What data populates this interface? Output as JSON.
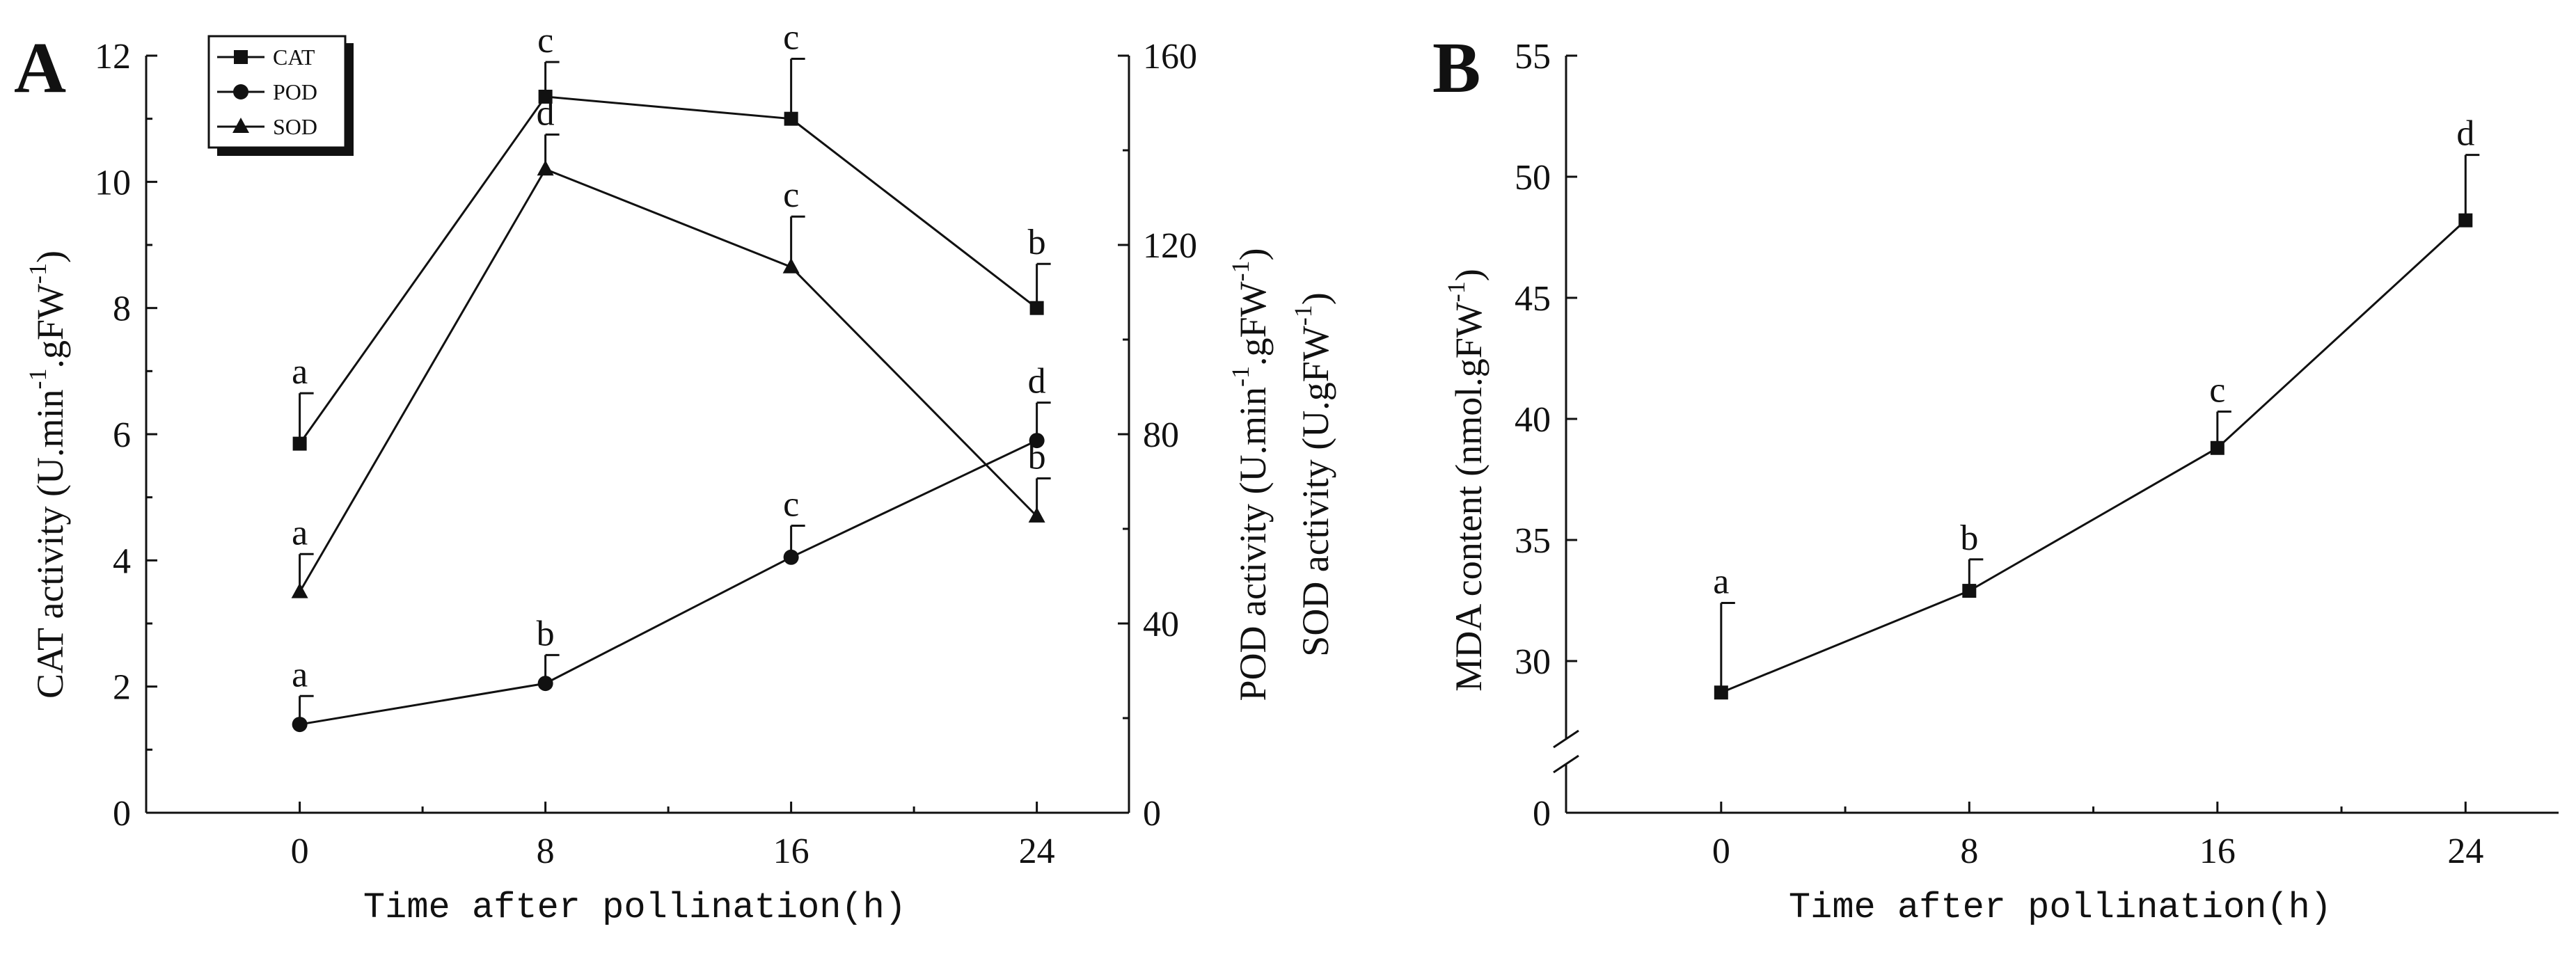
{
  "chart_data": [
    {
      "panel": "A",
      "type": "line",
      "xlabel": "Time after pollination(h)",
      "x": [
        0,
        8,
        16,
        24
      ],
      "xticks": [
        "0",
        "8",
        "16",
        "24"
      ],
      "xlim": [
        -5,
        27
      ],
      "y_left": {
        "label_main": "CAT activity (U.min",
        "label_sup1": "-1",
        "label_mid": ".gFW",
        "label_sup2": "-1",
        "label_end": ")",
        "range": [
          0,
          12
        ],
        "ticks": [
          "0",
          "2",
          "4",
          "6",
          "8",
          "10",
          "12"
        ]
      },
      "y_right": {
        "label_pod_main": "POD activity (U.min",
        "label_pod_sup1": "-1",
        "label_pod_mid": ".gFW",
        "label_pod_sup2": "-1",
        "label_pod_end": ")",
        "label_sod_main": "SOD activity (U.gFW",
        "label_sod_sup": "-1",
        "label_sod_end": ")",
        "range": [
          0,
          160
        ],
        "ticks": [
          "0",
          "40",
          "80",
          "120",
          "160"
        ]
      },
      "legend": {
        "placement": "top-left",
        "entries": [
          "CAT",
          "POD",
          "SOD"
        ]
      },
      "series": [
        {
          "name": "CAT",
          "marker": "square",
          "axis": "left",
          "values": [
            5.85,
            11.35,
            11.0,
            8.0
          ],
          "error": [
            0.8,
            0.55,
            0.95,
            0.7
          ],
          "labels": [
            "a",
            "c",
            "c",
            "b"
          ]
        },
        {
          "name": "POD",
          "marker": "circle",
          "axis": "left",
          "values": [
            1.4,
            2.05,
            4.05,
            5.9
          ],
          "error": [
            0.45,
            0.45,
            0.5,
            0.6
          ],
          "labels": [
            "a",
            "b",
            "c",
            "d"
          ]
        },
        {
          "name": "SOD",
          "marker": "triangle",
          "axis": "left",
          "values": [
            3.5,
            10.2,
            8.65,
            4.7
          ],
          "error": [
            0.6,
            0.55,
            0.8,
            0.6
          ],
          "labels": [
            "a",
            "d",
            "c",
            "b"
          ]
        }
      ]
    },
    {
      "panel": "B",
      "type": "line",
      "xlabel": "Time after pollination(h)",
      "x": [
        0,
        8,
        16,
        24
      ],
      "xticks": [
        "0",
        "8",
        "16",
        "24"
      ],
      "xlim": [
        -5,
        27
      ],
      "y": {
        "label_main": "MDA content (nmol.gFW",
        "label_sup": "-1",
        "label_end": ")",
        "range": [
          25,
          55
        ],
        "axis_break": true,
        "ticks": [
          "0",
          "30",
          "35",
          "40",
          "45",
          "50",
          "55"
        ]
      },
      "series": [
        {
          "name": "",
          "marker": "square",
          "values": [
            28.7,
            32.9,
            38.8,
            48.2
          ],
          "error": [
            3.7,
            1.3,
            1.5,
            2.7
          ],
          "labels": [
            "a",
            "b",
            "c",
            "d"
          ]
        }
      ]
    }
  ]
}
